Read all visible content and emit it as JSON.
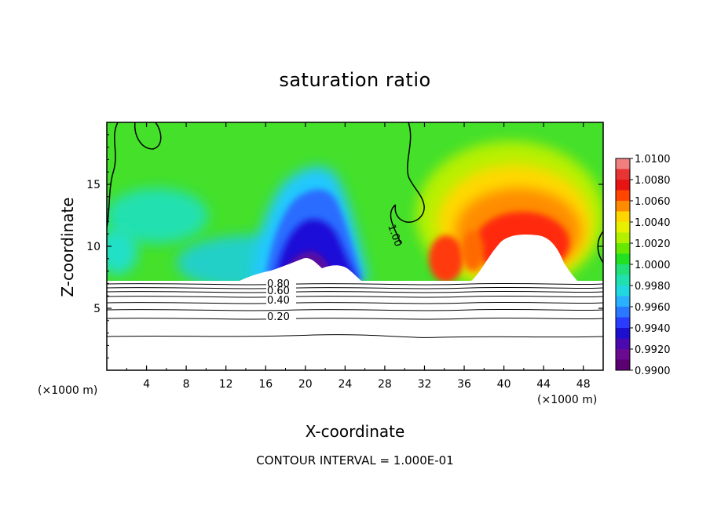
{
  "chart_data": {
    "type": "heatmap",
    "title": "saturation ratio",
    "xlabel": "X-coordinate",
    "ylabel": "Z-coordinate",
    "x_unit": "(×1000 m)",
    "y_unit": "(×1000 m)",
    "xlim": [
      0,
      50
    ],
    "ylim": [
      0,
      20
    ],
    "x_ticks": [
      4,
      8,
      12,
      16,
      20,
      24,
      28,
      32,
      36,
      40,
      44,
      48
    ],
    "y_ticks": [
      5,
      10,
      15
    ],
    "contour_interval_text": "CONTOUR INTERVAL = 1.000E-01",
    "colorbar": {
      "min": 0.99,
      "max": 1.01,
      "labels": [
        "1.0100",
        "1.0080",
        "1.0060",
        "1.0040",
        "1.0020",
        "1.0000",
        "0.9980",
        "0.9960",
        "0.9940",
        "0.9920",
        "0.9900"
      ],
      "colors": [
        "#f08080",
        "#e83434",
        "#e81414",
        "#ff4500",
        "#ff8c00",
        "#ffd700",
        "#e8f000",
        "#b2f000",
        "#66e800",
        "#22e022",
        "#22e078",
        "#20e0b0",
        "#20d8e0",
        "#2ab0ff",
        "#2a78ff",
        "#2a3cff",
        "#1c0fd0",
        "#4b0ab0",
        "#6a0a90",
        "#5a0070"
      ]
    },
    "contour_labels": [
      "0.80",
      "0.60",
      "0.40",
      "0.20",
      "1.00"
    ],
    "contour_levels": [
      0.2,
      0.4,
      0.6,
      0.8,
      1.0
    ]
  }
}
